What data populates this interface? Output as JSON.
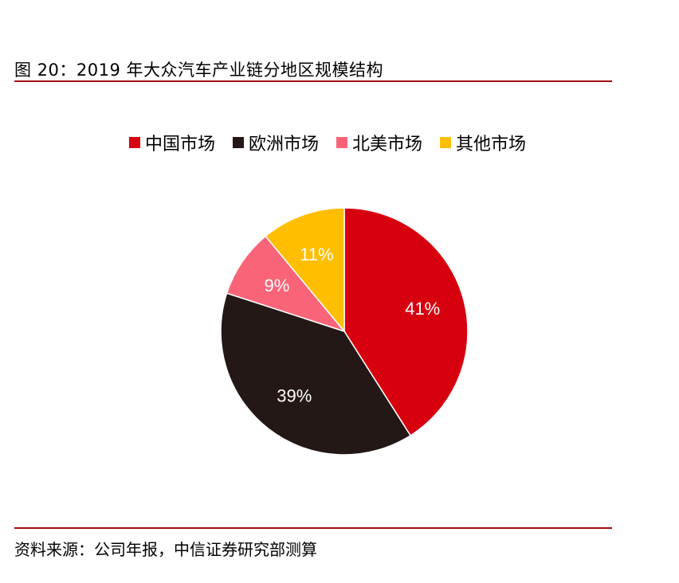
{
  "header": {
    "title": "图 20：2019 年大众汽车产业链分地区规模结构"
  },
  "footer": {
    "source": "资料来源：公司年报，中信证券研究部测算"
  },
  "chart_data": {
    "type": "pie",
    "categories": [
      "中国市场",
      "欧洲市场",
      "北美市场",
      "其他市场"
    ],
    "values": [
      41,
      39,
      9,
      11
    ],
    "labels": [
      "41%",
      "39%",
      "9%",
      "11%"
    ],
    "colors": [
      "#d7000f",
      "#231815",
      "#fa6478",
      "#ffbe00"
    ],
    "legend": "top",
    "start": "12 o'clock, clockwise"
  }
}
